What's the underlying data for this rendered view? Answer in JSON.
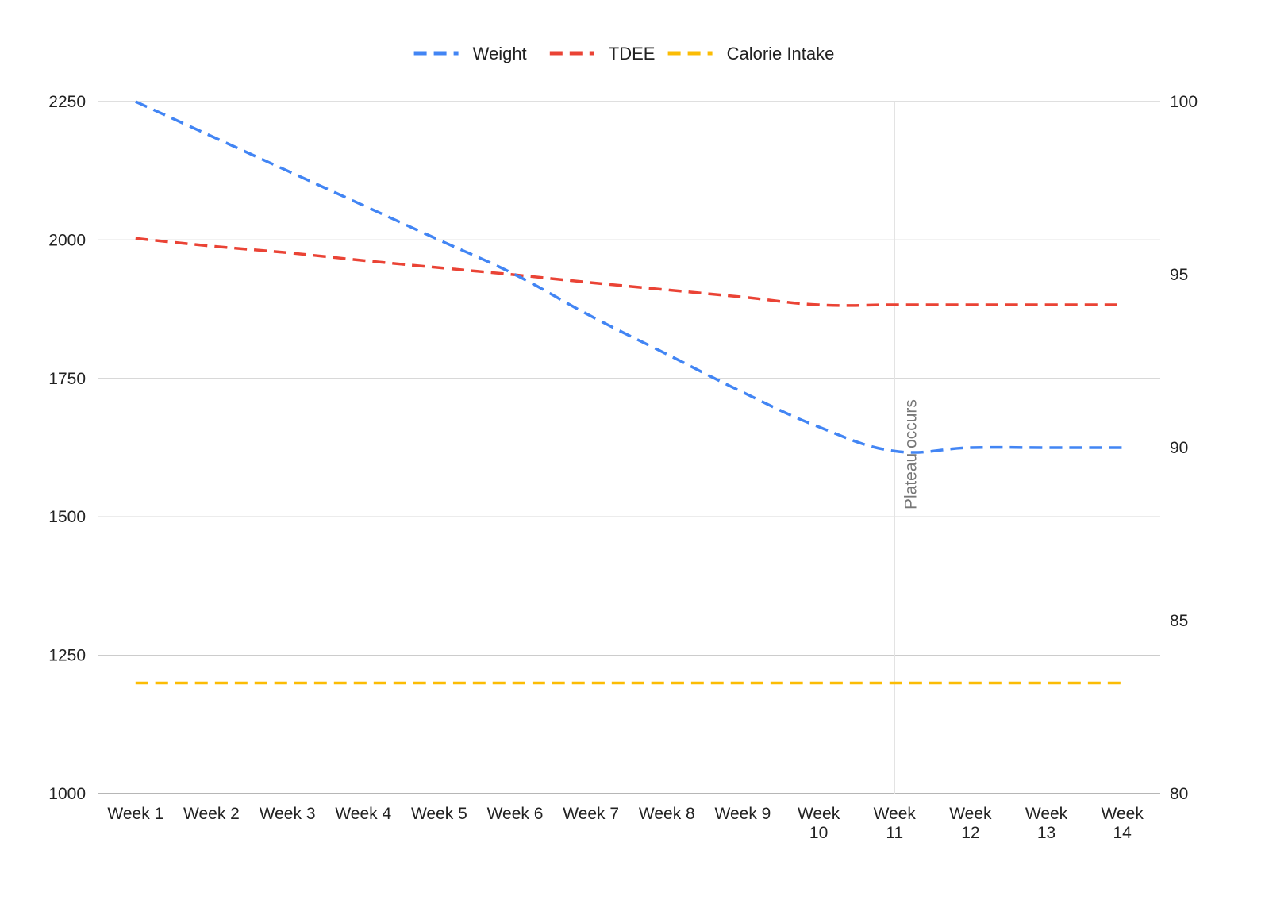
{
  "chart_data": {
    "type": "line",
    "categories": [
      [
        "Week 1"
      ],
      [
        "Week 2"
      ],
      [
        "Week 3"
      ],
      [
        "Week 4"
      ],
      [
        "Week 5"
      ],
      [
        "Week 6"
      ],
      [
        "Week 7"
      ],
      [
        "Week 8"
      ],
      [
        "Week 9"
      ],
      [
        "Week",
        "10"
      ],
      [
        "Week",
        "11"
      ],
      [
        "Week",
        "12"
      ],
      [
        "Week",
        "13"
      ],
      [
        "Week",
        "14"
      ]
    ],
    "series": [
      {
        "name": "Weight",
        "axis": "right",
        "color": "#4285F4",
        "values": [
          100,
          99.0,
          98.0,
          97.0,
          96.0,
          95.0,
          93.8,
          92.7,
          91.6,
          90.6,
          89.9,
          90.0,
          90.0,
          90.0
        ]
      },
      {
        "name": "TDEE",
        "axis": "left",
        "color": "#EA4335",
        "values": [
          2003,
          1989,
          1977,
          1963,
          1950,
          1937,
          1923,
          1910,
          1897,
          1883,
          1883,
          1883,
          1883,
          1883
        ]
      },
      {
        "name": "Calorie Intake",
        "axis": "left",
        "color": "#FBBC04",
        "values": [
          1200,
          1200,
          1200,
          1200,
          1200,
          1200,
          1200,
          1200,
          1200,
          1200,
          1200,
          1200,
          1200,
          1200
        ]
      }
    ],
    "left_axis": {
      "min": 1000,
      "max": 2250,
      "ticks": [
        "1000",
        "1250",
        "1500",
        "1750",
        "2000",
        "2250"
      ]
    },
    "right_axis": {
      "min": 80,
      "max": 100,
      "ticks": [
        "80",
        "85",
        "90",
        "95",
        "100"
      ]
    },
    "annotation": {
      "text": "Plateau occurs",
      "category_index": 10
    },
    "legend_position": "top-center",
    "grid": true,
    "line_style": "dashed"
  }
}
